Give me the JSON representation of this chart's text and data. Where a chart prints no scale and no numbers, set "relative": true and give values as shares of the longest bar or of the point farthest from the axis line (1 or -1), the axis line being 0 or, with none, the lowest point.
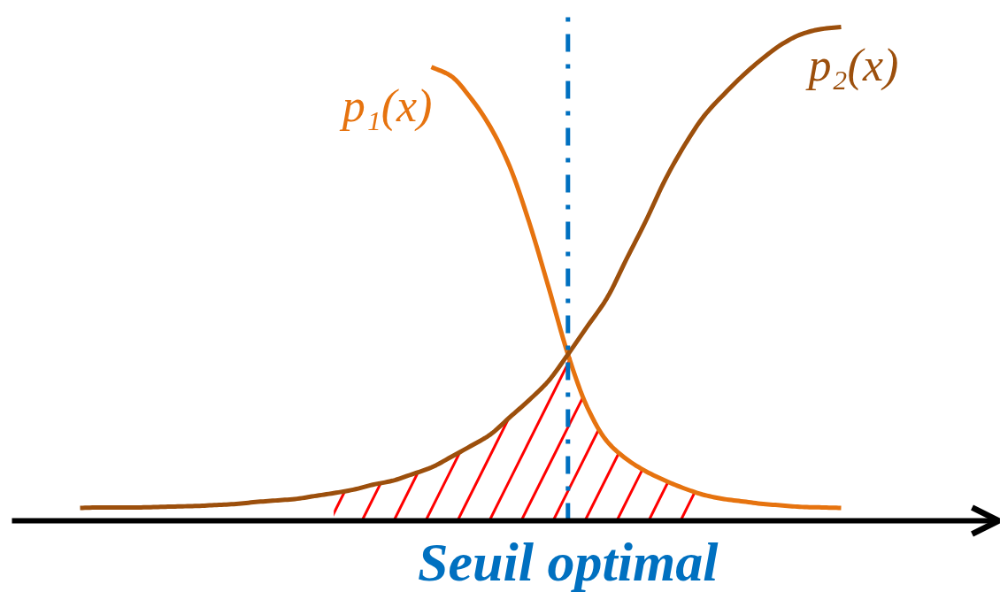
{
  "chart_data": {
    "type": "line",
    "relative": true,
    "categories": [
      null,
      null,
      null,
      null,
      null,
      null,
      null,
      null,
      null,
      null,
      null,
      null,
      null,
      null,
      null,
      null,
      null,
      null,
      null,
      null,
      null,
      null,
      null,
      null,
      null,
      null,
      null,
      null,
      null,
      null,
      null,
      null,
      null,
      null,
      null,
      null,
      null,
      null,
      null,
      null
    ],
    "series": [
      {
        "name": "p₁(x)",
        "color": "#e6730f",
        "values": [
          null,
          null,
          null,
          null,
          null,
          null,
          null,
          null,
          null,
          null,
          null,
          null,
          null,
          null,
          null,
          null,
          null,
          null,
          0.919,
          0.901,
          0.857,
          0.799,
          0.719,
          0.606,
          0.474,
          0.337,
          0.229,
          0.161,
          0.125,
          0.1,
          0.081,
          0.065,
          0.052,
          0.044,
          0.039,
          0.034,
          0.031,
          0.028,
          0.027,
          0.026
        ]
      },
      {
        "name": "p₂(x)",
        "color": "#9c4f0c",
        "values": [
          0.026,
          0.027,
          0.027,
          0.027,
          0.028,
          0.029,
          0.03,
          0.032,
          0.034,
          0.038,
          0.041,
          0.044,
          0.05,
          0.056,
          0.063,
          0.073,
          0.081,
          0.094,
          0.108,
          0.129,
          0.151,
          0.174,
          0.209,
          0.244,
          0.283,
          0.337,
          0.394,
          0.451,
          0.53,
          0.608,
          0.692,
          0.762,
          0.821,
          0.864,
          0.903,
          0.937,
          0.966,
          0.986,
          0.996,
          1
        ]
      },
      {
        "type": "area",
        "color": "#ff0000",
        "values": [
          null,
          null,
          null,
          null,
          null,
          null,
          null,
          null,
          null,
          null,
          null,
          null,
          null,
          0.056,
          0.063,
          0.073,
          0.081,
          0.094,
          0.108,
          0.129,
          0.151,
          0.174,
          0.209,
          0.244,
          0.283,
          0.337,
          0.229,
          0.161,
          0.125,
          0.1,
          0.081,
          0.065,
          0.052,
          null,
          null,
          null,
          null,
          null,
          null,
          null
        ]
      }
    ],
    "ref_lines": [
      {
        "axis": "x",
        "label": "Seuil optimal",
        "color": "#0070c0",
        "line_style": "dashdot"
      }
    ]
  }
}
